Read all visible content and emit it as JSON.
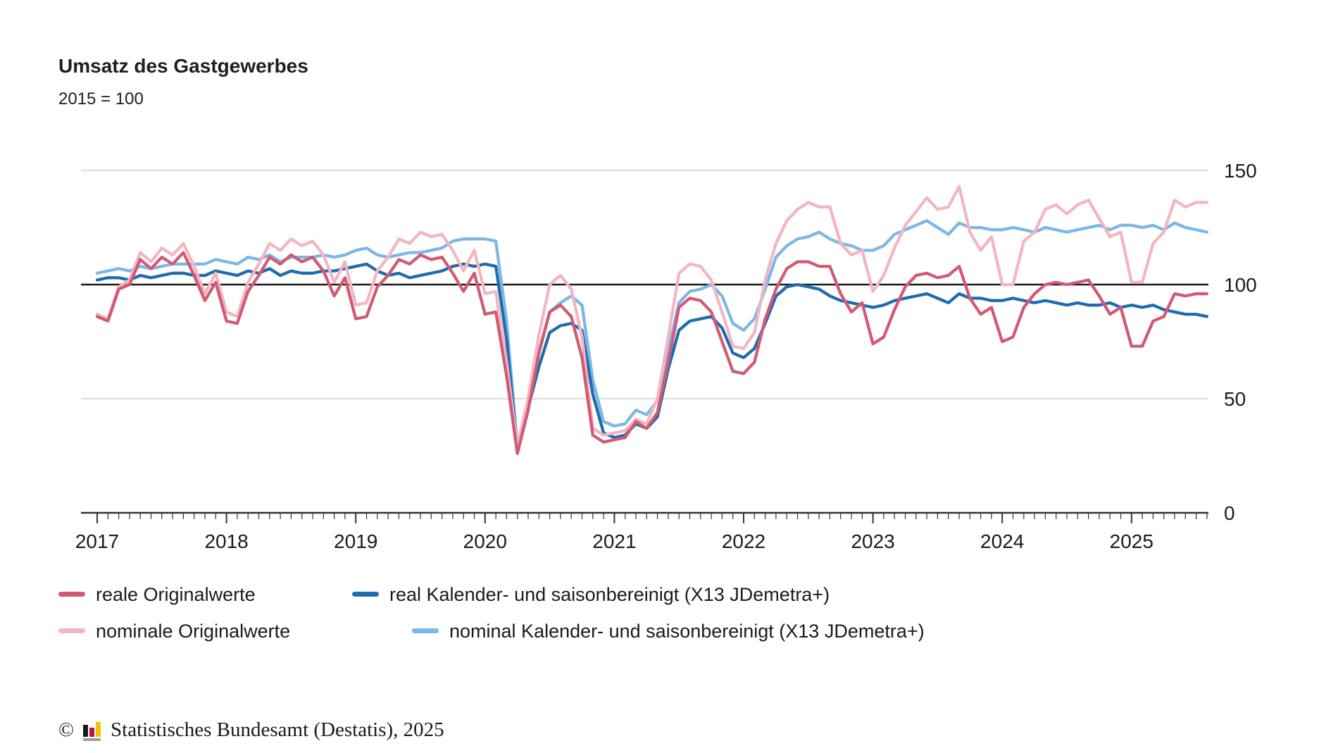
{
  "chart_data": {
    "type": "line",
    "title": "Umsatz des Gastgewerbes",
    "subtitle": "2015 = 100",
    "x_axis": {
      "year_labels": [
        "2017",
        "2018",
        "2019",
        "2020",
        "2021",
        "2022",
        "2023",
        "2024",
        "2025"
      ],
      "minor_ticks": "monthly",
      "start": "2017-01",
      "end": "2025-08"
    },
    "y_axis": {
      "tick_values": [
        150,
        100,
        50,
        0
      ],
      "tick_labels": [
        "150",
        "100",
        "50",
        "0"
      ],
      "range": [
        0,
        155
      ],
      "baseline_value": 100,
      "grid": "horizontal"
    },
    "legend_position": "bottom",
    "colors": {
      "grid": "#cfcfcf",
      "baseline": "#1a1a1a",
      "axis": "#333333",
      "text": "#1a1a1a"
    },
    "series": [
      {
        "id": "reale-originalwerte",
        "name": "reale Originalwerte",
        "color": "#d25a73",
        "values": [
          86,
          84,
          98,
          100,
          111,
          107,
          112,
          109,
          114,
          104,
          93,
          101,
          84,
          83,
          97,
          104,
          112,
          109,
          113,
          110,
          112,
          106,
          95,
          103,
          85,
          86,
          99,
          104,
          111,
          109,
          113,
          111,
          112,
          105,
          97,
          105,
          87,
          88,
          60,
          26,
          45,
          70,
          88,
          91,
          86,
          68,
          34,
          31,
          32,
          33,
          40,
          37,
          44,
          66,
          90,
          94,
          93,
          88,
          75,
          62,
          61,
          66,
          85,
          98,
          107,
          110,
          110,
          108,
          108,
          96,
          88,
          92,
          74,
          77,
          89,
          99,
          104,
          105,
          103,
          104,
          108,
          94,
          87,
          90,
          75,
          77,
          90,
          96,
          100,
          101,
          100,
          101,
          102,
          95,
          87,
          90,
          73,
          73,
          84,
          86,
          96,
          95,
          96,
          96
        ]
      },
      {
        "id": "real-kalender-saisonbereinigt",
        "name": "real Kalender- und saisonbereinigt (X13 JDemetra+)",
        "color": "#1e6cb0",
        "values": [
          102,
          103,
          103,
          102,
          104,
          103,
          104,
          105,
          105,
          104,
          104,
          106,
          105,
          104,
          106,
          105,
          107,
          104,
          106,
          105,
          105,
          106,
          106,
          107,
          108,
          109,
          106,
          104,
          105,
          103,
          104,
          105,
          106,
          108,
          109,
          108,
          109,
          108,
          76,
          27,
          46,
          64,
          79,
          82,
          83,
          80,
          52,
          35,
          33,
          34,
          39,
          37,
          42,
          63,
          80,
          84,
          85,
          86,
          81,
          70,
          68,
          72,
          83,
          95,
          99,
          100,
          99,
          98,
          95,
          93,
          92,
          91,
          90,
          91,
          93,
          94,
          95,
          96,
          94,
          92,
          96,
          94,
          94,
          93,
          93,
          94,
          93,
          92,
          93,
          92,
          91,
          92,
          91,
          91,
          92,
          90,
          91,
          90,
          91,
          89,
          88,
          87,
          87,
          86
        ]
      },
      {
        "id": "nominale-originalwerte",
        "name": "nominale Originalwerte",
        "color": "#f3b6c1",
        "values": [
          87,
          85,
          99,
          102,
          114,
          110,
          116,
          113,
          118,
          108,
          96,
          105,
          88,
          86,
          101,
          109,
          118,
          115,
          120,
          117,
          119,
          113,
          101,
          110,
          91,
          92,
          106,
          112,
          120,
          118,
          123,
          121,
          122,
          115,
          106,
          115,
          96,
          97,
          66,
          29,
          50,
          78,
          100,
          104,
          98,
          77,
          37,
          34,
          35,
          36,
          41,
          39,
          50,
          77,
          105,
          109,
          108,
          102,
          88,
          73,
          72,
          79,
          102,
          118,
          128,
          133,
          136,
          134,
          134,
          118,
          113,
          115,
          97,
          104,
          116,
          126,
          132,
          138,
          133,
          134,
          143,
          123,
          115,
          121,
          100,
          100,
          119,
          123,
          133,
          135,
          131,
          135,
          137,
          129,
          121,
          123,
          101,
          101,
          118,
          123,
          137,
          134,
          136,
          136
        ]
      },
      {
        "id": "nominal-kalender-saisonbereinigt",
        "name": "nominal Kalender- und saisonbereinigt (X13 JDemetra+)",
        "color": "#7cb7e8",
        "values": [
          105,
          106,
          107,
          106,
          108,
          107,
          108,
          109,
          109,
          109,
          109,
          111,
          110,
          109,
          112,
          111,
          113,
          110,
          112,
          112,
          112,
          113,
          112,
          113,
          115,
          116,
          113,
          112,
          113,
          114,
          114,
          115,
          116,
          119,
          120,
          120,
          120,
          119,
          84,
          29,
          50,
          71,
          88,
          92,
          95,
          91,
          58,
          40,
          38,
          39,
          45,
          43,
          49,
          71,
          92,
          97,
          98,
          100,
          95,
          83,
          80,
          85,
          98,
          112,
          117,
          120,
          121,
          123,
          120,
          118,
          117,
          115,
          115,
          117,
          122,
          124,
          126,
          128,
          125,
          122,
          127,
          125,
          125,
          124,
          124,
          125,
          124,
          123,
          125,
          124,
          123,
          124,
          125,
          126,
          124,
          126,
          126,
          125,
          126,
          124,
          127,
          125,
          124,
          123
        ]
      }
    ]
  },
  "footer": {
    "copyright": "©",
    "source": "Statistisches Bundesamt (Destatis), 2025",
    "logo": {
      "bars": [
        "#1a1a1a",
        "#b5154c",
        "#f2c400"
      ],
      "base": "#9e9e9e"
    }
  }
}
